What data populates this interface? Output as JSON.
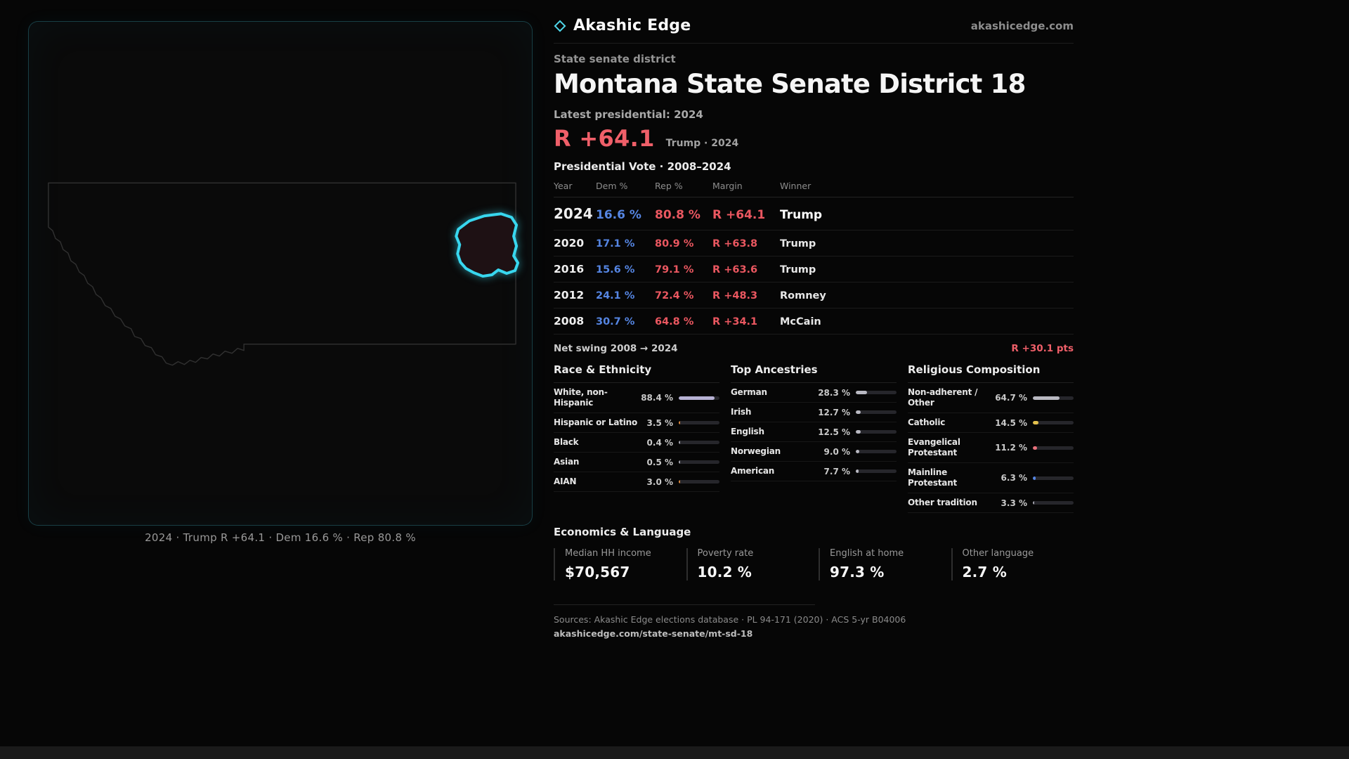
{
  "brand": {
    "name": "Akashic Edge",
    "site": "akashicedge.com"
  },
  "page": {
    "kicker": "State senate district",
    "title": "Montana State Senate District 18",
    "latest_label": "Latest presidential: 2024",
    "headline": {
      "margin": "R +64.1",
      "context": "Trump · 2024"
    },
    "net_swing": {
      "label": "Net swing 2008 → 2024",
      "value": "R +30.1 pts"
    }
  },
  "map": {
    "region": "Montana",
    "district": "State Senate District 18",
    "outline_color": "#38d7ef",
    "caption": "2024 · Trump R +64.1 · Dem 16.6 % · Rep 80.8 %"
  },
  "economics": {
    "title": "Economics & Language",
    "stats": [
      {
        "label": "Median HH income",
        "value": "$70,567"
      },
      {
        "label": "Poverty rate",
        "value": "10.2 %"
      },
      {
        "label": "English at home",
        "value": "97.3 %"
      },
      {
        "label": "Other language",
        "value": "2.7 %"
      }
    ]
  },
  "footer": {
    "sources": "Sources: Akashic Edge elections database · PL 94-171 (2020) · ACS 5-yr B04006",
    "permalink": "akashicedge.com/state-senate/mt-sd-18"
  },
  "colors": {
    "dem": "#5585e2",
    "rep": "#ea5760",
    "accent": "#38d7ef",
    "bar_track": "#26262b"
  },
  "chart_data": [
    {
      "type": "table",
      "title": "Presidential Vote · 2008–2024",
      "columns": [
        "Year",
        "Dem %",
        "Rep %",
        "Margin",
        "Winner"
      ],
      "rows": [
        {
          "year": "2024",
          "dem": "16.6 %",
          "rep": "80.8 %",
          "margin": "R +64.1",
          "winner": "Trump",
          "emphasis": true
        },
        {
          "year": "2020",
          "dem": "17.1 %",
          "rep": "80.9 %",
          "margin": "R +63.8",
          "winner": "Trump",
          "emphasis": false
        },
        {
          "year": "2016",
          "dem": "15.6 %",
          "rep": "79.1 %",
          "margin": "R +63.6",
          "winner": "Trump",
          "emphasis": false
        },
        {
          "year": "2012",
          "dem": "24.1 %",
          "rep": "72.4 %",
          "margin": "R +48.3",
          "winner": "Romney",
          "emphasis": false
        },
        {
          "year": "2008",
          "dem": "30.7 %",
          "rep": "64.8 %",
          "margin": "R +34.1",
          "winner": "McCain",
          "emphasis": false
        }
      ]
    },
    {
      "type": "bar",
      "title": "Race & Ethnicity",
      "unit": "%",
      "xlim": [
        0,
        100
      ],
      "rows": [
        {
          "label": "White, non-Hispanic",
          "value": 88.4,
          "display": "88.4 %",
          "color": "#b7b2d4"
        },
        {
          "label": "Hispanic or Latino",
          "value": 3.5,
          "display": "3.5 %",
          "color": "#de8a3e"
        },
        {
          "label": "Black",
          "value": 0.4,
          "display": "0.4 %",
          "color": "#a3a3ad"
        },
        {
          "label": "Asian",
          "value": 0.5,
          "display": "0.5 %",
          "color": "#a3a3ad"
        },
        {
          "label": "AIAN",
          "value": 3.0,
          "display": "3.0 %",
          "color": "#de8a3e"
        }
      ]
    },
    {
      "type": "bar",
      "title": "Top Ancestries",
      "unit": "%",
      "xlim": [
        0,
        100
      ],
      "rows": [
        {
          "label": "German",
          "value": 28.3,
          "display": "28.3 %",
          "color": "#b9b9c2"
        },
        {
          "label": "Irish",
          "value": 12.7,
          "display": "12.7 %",
          "color": "#b9b9c2"
        },
        {
          "label": "English",
          "value": 12.5,
          "display": "12.5 %",
          "color": "#b9b9c2"
        },
        {
          "label": "Norwegian",
          "value": 9.0,
          "display": "9.0 %",
          "color": "#b9b9c2"
        },
        {
          "label": "American",
          "value": 7.7,
          "display": "7.7 %",
          "color": "#b9b9c2"
        }
      ]
    },
    {
      "type": "bar",
      "title": "Religious Composition",
      "unit": "%",
      "xlim": [
        0,
        100
      ],
      "rows": [
        {
          "label": "Non-adherent / Other",
          "value": 64.7,
          "display": "64.7 %",
          "color": "#b9b9c2"
        },
        {
          "label": "Catholic",
          "value": 14.5,
          "display": "14.5 %",
          "color": "#e4c14d"
        },
        {
          "label": "Evangelical Protestant",
          "value": 11.2,
          "display": "11.2 %",
          "color": "#e8707a"
        },
        {
          "label": "Mainline Protestant",
          "value": 6.3,
          "display": "6.3 %",
          "color": "#5585e2"
        },
        {
          "label": "Other tradition",
          "value": 3.3,
          "display": "3.3 %",
          "color": "#a3a3ad"
        }
      ]
    }
  ]
}
